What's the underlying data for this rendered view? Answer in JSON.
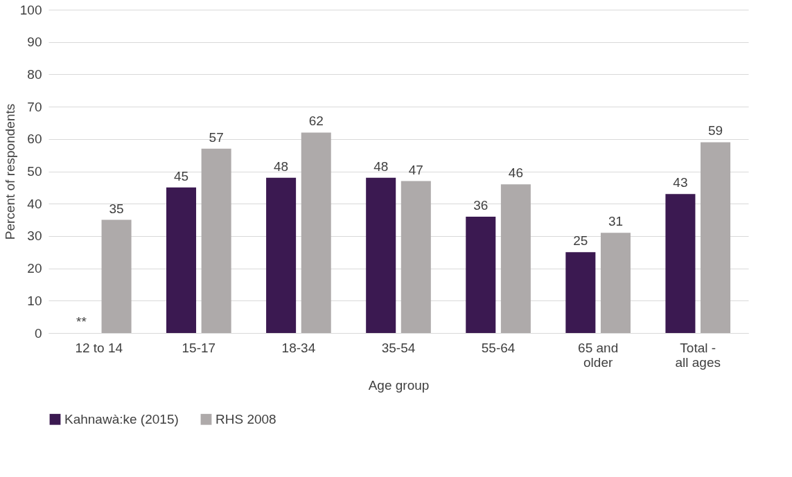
{
  "chart_data": {
    "type": "bar",
    "xlabel": "Age group",
    "ylabel": "Percent of respondents",
    "categories": [
      "12 to 14",
      "15-17",
      "18-34",
      "35-54",
      "55-64",
      "65 and older",
      "Total - all ages"
    ],
    "series": [
      {
        "name": "Kahnawà:ke (2015)",
        "color": "#3b1951",
        "values": [
          null,
          45,
          48,
          48,
          36,
          25,
          43
        ],
        "value_labels": [
          "**",
          "45",
          "48",
          "48",
          "36",
          "25",
          "43"
        ]
      },
      {
        "name": "RHS 2008",
        "color": "#aeaaaa",
        "values": [
          35,
          57,
          62,
          47,
          46,
          31,
          59
        ],
        "value_labels": [
          "35",
          "57",
          "62",
          "47",
          "46",
          "31",
          "59"
        ]
      }
    ],
    "ylim": [
      0,
      100
    ],
    "yticks": [
      0,
      10,
      20,
      30,
      40,
      50,
      60,
      70,
      80,
      90,
      100
    ],
    "grid": "y",
    "legend": "bottom"
  }
}
